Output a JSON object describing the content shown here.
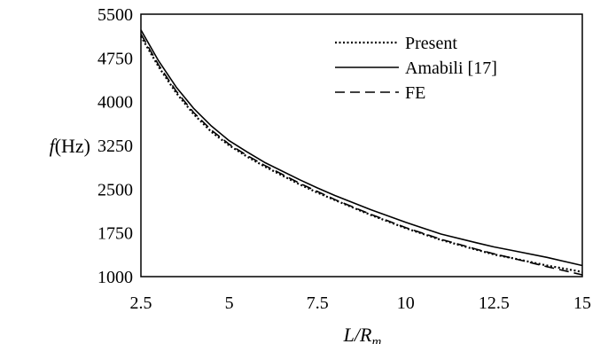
{
  "chart_data": {
    "type": "line",
    "xlabel": {
      "main": "L/R",
      "sub": "m"
    },
    "ylabel": {
      "italic": "f",
      "normal": "(Hz)"
    },
    "xlim": [
      2.5,
      15
    ],
    "ylim": [
      1000,
      5500
    ],
    "xticks": [
      "2.5",
      "5",
      "7.5",
      "10",
      "12.5",
      "15"
    ],
    "yticks": [
      "1000",
      "1750",
      "2500",
      "3250",
      "4000",
      "4750",
      "5500"
    ],
    "grid": false,
    "legend_position": "top-right",
    "series": [
      {
        "name": "Present",
        "style": "dotted",
        "x": [
          2.5,
          3,
          3.5,
          4,
          4.5,
          5,
          5.5,
          6,
          7,
          7.5,
          8,
          9,
          10,
          11,
          12,
          12.5,
          13,
          14,
          15
        ],
        "y": [
          5120,
          4600,
          4150,
          3780,
          3480,
          3250,
          3060,
          2890,
          2580,
          2440,
          2310,
          2060,
          1830,
          1630,
          1460,
          1380,
          1320,
          1190,
          1080
        ]
      },
      {
        "name": "Amabili [17]",
        "style": "solid",
        "x": [
          2.5,
          3,
          3.5,
          4,
          4.5,
          5,
          5.5,
          6,
          7,
          7.5,
          8,
          9,
          10,
          11,
          12,
          12.5,
          13,
          14,
          15
        ],
        "y": [
          5230,
          4700,
          4250,
          3880,
          3580,
          3330,
          3140,
          2960,
          2660,
          2520,
          2390,
          2150,
          1930,
          1730,
          1580,
          1510,
          1450,
          1330,
          1190
        ]
      },
      {
        "name": "FE",
        "style": "dashed",
        "x": [
          2.5,
          3,
          3.5,
          4,
          4.5,
          5,
          5.5,
          6,
          7,
          7.5,
          8,
          9,
          10,
          11,
          12,
          12.5,
          13,
          14,
          15
        ],
        "y": [
          5160,
          4630,
          4180,
          3810,
          3510,
          3270,
          3080,
          2910,
          2600,
          2460,
          2320,
          2070,
          1840,
          1640,
          1470,
          1390,
          1320,
          1170,
          1030
        ]
      }
    ]
  }
}
